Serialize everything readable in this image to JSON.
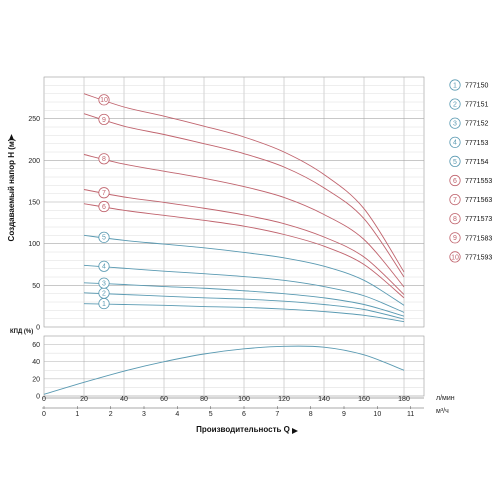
{
  "chart_data": [
    {
      "id": "head",
      "type": "line",
      "ylabel": "Создаваемый напор H (м)",
      "ylim": [
        0,
        300
      ],
      "yticks": [
        0,
        50,
        100,
        150,
        200,
        250
      ],
      "xlim": [
        0,
        190
      ],
      "grid": true,
      "legend_placement": "right",
      "series": [
        {
          "marker": "1",
          "name": "777150",
          "color": "#5a9ab2",
          "x": [
            20,
            40,
            60,
            80,
            100,
            120,
            140,
            160,
            180
          ],
          "y": [
            28,
            27,
            26,
            24.5,
            23.5,
            21.5,
            18.5,
            14,
            6.5
          ]
        },
        {
          "marker": "2",
          "name": "777151",
          "color": "#5a9ab2",
          "x": [
            20,
            40,
            60,
            80,
            100,
            120,
            140,
            160,
            180
          ],
          "y": [
            41,
            39,
            37,
            35,
            33.5,
            31,
            27,
            21,
            9.5
          ]
        },
        {
          "marker": "3",
          "name": "777152",
          "color": "#5a9ab2",
          "x": [
            20,
            40,
            60,
            80,
            100,
            120,
            140,
            160,
            180
          ],
          "y": [
            53,
            51,
            48.5,
            46.5,
            43.5,
            40,
            35,
            27,
            13
          ]
        },
        {
          "marker": "4",
          "name": "777153",
          "color": "#5a9ab2",
          "x": [
            20,
            40,
            60,
            80,
            100,
            120,
            140,
            160,
            180
          ],
          "y": [
            74,
            70.5,
            67,
            64,
            60.5,
            56,
            48.5,
            37.5,
            17.5
          ]
        },
        {
          "marker": "5",
          "name": "777154",
          "color": "#5a9ab2",
          "x": [
            20,
            40,
            60,
            80,
            100,
            120,
            140,
            160,
            180
          ],
          "y": [
            110,
            104,
            99.5,
            95,
            89.5,
            83,
            73,
            56,
            26
          ]
        },
        {
          "marker": "6",
          "name": "7771553",
          "color": "#c0646e",
          "x": [
            20,
            40,
            60,
            80,
            100,
            120,
            140,
            160,
            180
          ],
          "y": [
            148,
            140,
            134,
            128,
            121,
            111,
            97,
            75,
            35
          ]
        },
        {
          "marker": "7",
          "name": "7771563",
          "color": "#c0646e",
          "x": [
            20,
            40,
            60,
            80,
            100,
            120,
            140,
            160,
            180
          ],
          "y": [
            165,
            156,
            149.5,
            142.5,
            134.5,
            124,
            108,
            84,
            39
          ]
        },
        {
          "marker": "8",
          "name": "7771573",
          "color": "#c0646e",
          "x": [
            20,
            40,
            60,
            80,
            100,
            120,
            140,
            160,
            180
          ],
          "y": [
            207,
            195.5,
            187,
            178.5,
            168.5,
            155.5,
            135,
            105,
            48
          ]
        },
        {
          "marker": "9",
          "name": "7771583",
          "color": "#c0646e",
          "x": [
            20,
            40,
            60,
            80,
            100,
            120,
            140,
            160,
            180
          ],
          "y": [
            256,
            241,
            231,
            220,
            208,
            192,
            167,
            130,
            60
          ]
        },
        {
          "marker": "10",
          "name": "7771593",
          "color": "#c0646e",
          "x": [
            20,
            40,
            60,
            80,
            100,
            120,
            140,
            160,
            180
          ],
          "y": [
            280,
            264,
            253,
            241,
            228,
            210,
            183,
            142,
            66
          ]
        }
      ]
    },
    {
      "id": "efficiency",
      "type": "line",
      "ylabel": "КПД (%)",
      "ylim": [
        0,
        70
      ],
      "yticks": [
        0,
        20,
        40,
        60
      ],
      "xlim": [
        0,
        190
      ],
      "grid": true,
      "series": [
        {
          "name": "",
          "color": "#5a9ab2",
          "x": [
            0,
            20,
            40,
            60,
            80,
            100,
            120,
            140,
            160,
            180
          ],
          "y": [
            2,
            16,
            29,
            40,
            49,
            55,
            58,
            57,
            48,
            30
          ]
        }
      ]
    }
  ],
  "x_axis": {
    "title": "Производительность Q",
    "unit_top": "л/мин",
    "unit_bottom": "м³/ч",
    "ticks_top": [
      0,
      20,
      40,
      60,
      80,
      100,
      120,
      140,
      160,
      180
    ],
    "ticks_bottom": [
      0,
      1,
      2,
      3,
      4,
      5,
      6,
      7,
      8,
      9,
      10,
      11
    ]
  }
}
